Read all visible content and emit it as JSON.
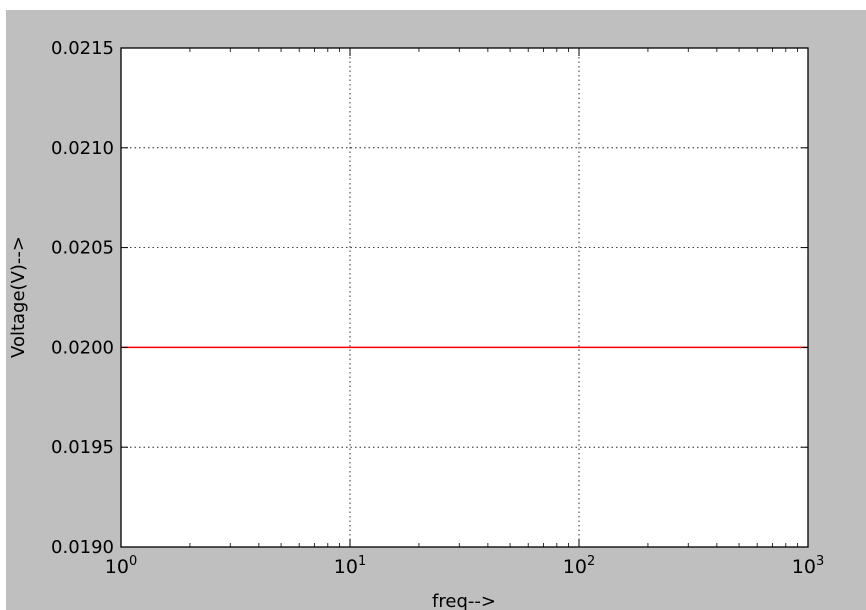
{
  "chart_data": {
    "type": "line",
    "xscale": "log",
    "xlim": [
      1,
      1000
    ],
    "ylim": [
      0.019,
      0.0215
    ],
    "xlabel": "freq-->",
    "ylabel": "Voltage(V)-->",
    "grid": true,
    "x_ticks": [
      {
        "value": 1,
        "base": "10",
        "exp": "0"
      },
      {
        "value": 10,
        "base": "10",
        "exp": "1"
      },
      {
        "value": 100,
        "base": "10",
        "exp": "2"
      },
      {
        "value": 1000,
        "base": "10",
        "exp": "3"
      }
    ],
    "y_ticks": [
      {
        "value": 0.019,
        "label": "0.0190"
      },
      {
        "value": 0.0195,
        "label": "0.0195"
      },
      {
        "value": 0.02,
        "label": "0.0200"
      },
      {
        "value": 0.0205,
        "label": "0.0205"
      },
      {
        "value": 0.021,
        "label": "0.0210"
      },
      {
        "value": 0.0215,
        "label": "0.0215"
      }
    ],
    "series": [
      {
        "color": "#ff0000",
        "x": [
          1,
          10,
          100,
          1000
        ],
        "y": [
          0.02,
          0.02,
          0.02,
          0.02
        ]
      }
    ]
  }
}
